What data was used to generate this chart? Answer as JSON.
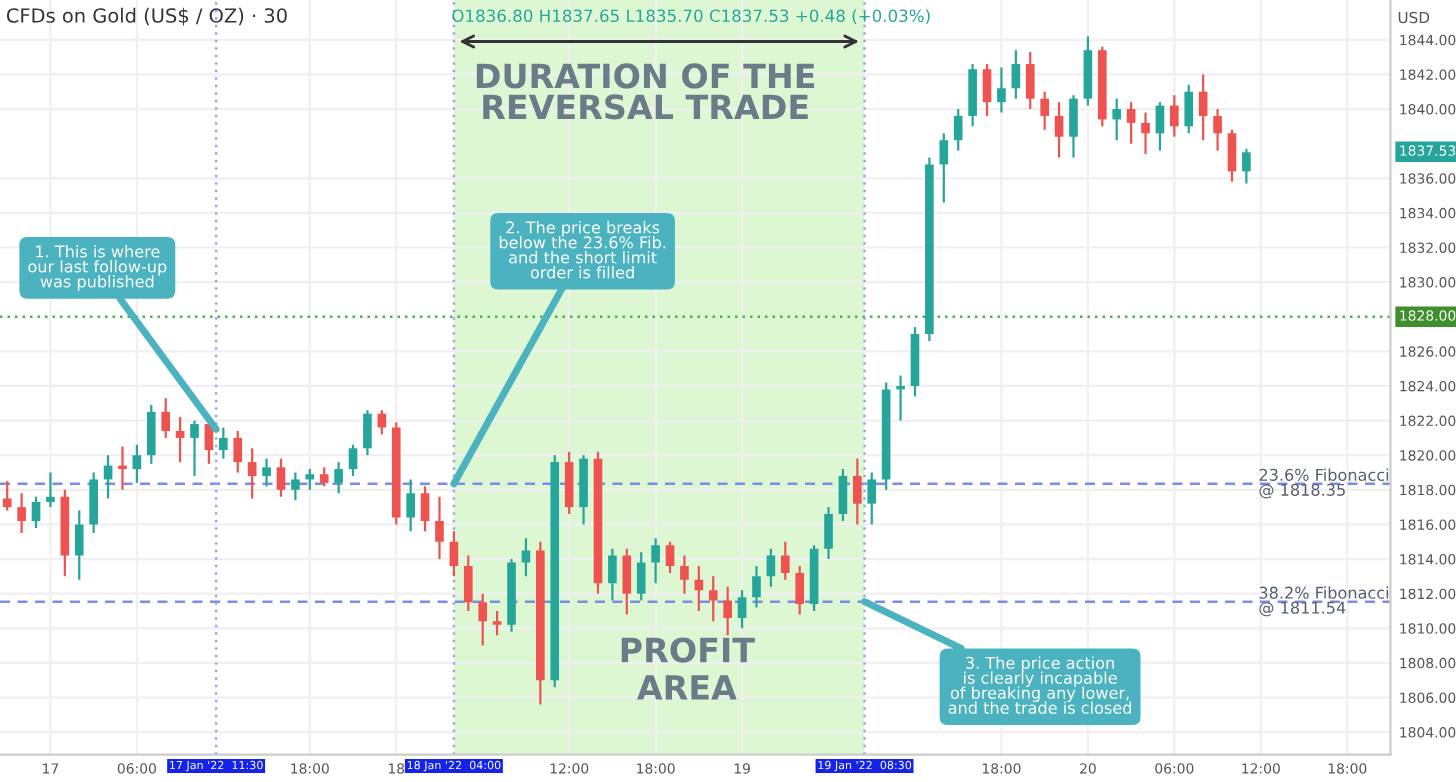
{
  "chart_data": {
    "type": "candlestick",
    "title": "CFDs on Gold (US$ / OZ) · 30",
    "subtitle": "O1836.80 H1837.65 L1835.70 C1837.53 +0.48 (+0.03%)",
    "ylabel": "USD",
    "x": [
      "2022-01-16T21:00",
      "2022-01-16T22:00",
      "2022-01-16T23:00",
      "2022-01-17T00:00",
      "2022-01-17T01:00",
      "2022-01-17T02:00",
      "2022-01-17T03:00",
      "2022-01-17T04:00",
      "2022-01-17T05:00",
      "2022-01-17T06:00",
      "2022-01-17T07:00",
      "2022-01-17T08:00",
      "2022-01-17T09:00",
      "2022-01-17T10:00",
      "2022-01-17T11:00",
      "2022-01-17T12:00",
      "2022-01-17T13:00",
      "2022-01-17T14:00",
      "2022-01-17T15:00",
      "2022-01-17T16:00",
      "2022-01-17T17:00",
      "2022-01-17T18:00",
      "2022-01-17T19:00",
      "2022-01-17T20:00",
      "2022-01-17T21:00",
      "2022-01-17T22:00",
      "2022-01-17T23:00",
      "2022-01-18T00:00",
      "2022-01-18T01:00",
      "2022-01-18T02:00",
      "2022-01-18T03:00",
      "2022-01-18T04:00",
      "2022-01-18T05:00",
      "2022-01-18T06:00",
      "2022-01-18T07:00",
      "2022-01-18T08:00",
      "2022-01-18T09:00",
      "2022-01-18T10:00",
      "2022-01-18T11:00",
      "2022-01-18T12:00",
      "2022-01-18T13:00",
      "2022-01-18T14:00",
      "2022-01-18T15:00",
      "2022-01-18T16:00",
      "2022-01-18T17:00",
      "2022-01-18T18:00",
      "2022-01-18T19:00",
      "2022-01-18T20:00",
      "2022-01-18T21:00",
      "2022-01-18T22:00",
      "2022-01-18T23:00",
      "2022-01-19T00:00",
      "2022-01-19T01:00",
      "2022-01-19T02:00",
      "2022-01-19T03:00",
      "2022-01-19T04:00",
      "2022-01-19T05:00",
      "2022-01-19T06:00",
      "2022-01-19T07:00",
      "2022-01-19T08:00",
      "2022-01-19T09:00",
      "2022-01-19T10:00",
      "2022-01-19T11:00",
      "2022-01-19T12:00",
      "2022-01-19T13:00",
      "2022-01-19T14:00",
      "2022-01-19T15:00",
      "2022-01-19T16:00",
      "2022-01-19T17:00",
      "2022-01-19T18:00",
      "2022-01-19T19:00",
      "2022-01-19T20:00",
      "2022-01-19T21:00",
      "2022-01-19T22:00",
      "2022-01-19T23:00",
      "2022-01-20T00:00",
      "2022-01-20T01:00",
      "2022-01-20T02:00",
      "2022-01-20T03:00",
      "2022-01-20T04:00",
      "2022-01-20T05:00",
      "2022-01-20T06:00",
      "2022-01-20T07:00",
      "2022-01-20T08:00",
      "2022-01-20T09:00",
      "2022-01-20T10:00",
      "2022-01-20T11:00"
    ],
    "ohlc": [
      [
        1817.5,
        1818.5,
        1816.8,
        1817.0
      ],
      [
        1817.0,
        1817.8,
        1815.5,
        1816.2
      ],
      [
        1816.2,
        1817.6,
        1815.8,
        1817.3
      ],
      [
        1817.3,
        1819.0,
        1817.0,
        1817.6
      ],
      [
        1817.6,
        1818.0,
        1813.0,
        1814.2
      ],
      [
        1814.2,
        1816.8,
        1812.8,
        1816.0
      ],
      [
        1816.0,
        1819.0,
        1815.5,
        1818.6
      ],
      [
        1818.6,
        1820.0,
        1817.5,
        1819.4
      ],
      [
        1819.4,
        1820.5,
        1818.0,
        1819.2
      ],
      [
        1819.2,
        1820.6,
        1818.4,
        1820.0
      ],
      [
        1820.0,
        1822.9,
        1819.5,
        1822.5
      ],
      [
        1822.5,
        1823.3,
        1821.0,
        1821.4
      ],
      [
        1821.4,
        1822.2,
        1819.6,
        1821.0
      ],
      [
        1821.0,
        1822.0,
        1818.8,
        1821.8
      ],
      [
        1821.8,
        1822.0,
        1819.5,
        1820.3
      ],
      [
        1820.3,
        1821.6,
        1819.8,
        1821.0
      ],
      [
        1821.0,
        1821.4,
        1819.0,
        1819.6
      ],
      [
        1819.6,
        1820.4,
        1817.5,
        1818.8
      ],
      [
        1818.8,
        1819.8,
        1818.2,
        1819.3
      ],
      [
        1819.3,
        1819.8,
        1817.6,
        1818.0
      ],
      [
        1818.0,
        1819.0,
        1817.4,
        1818.6
      ],
      [
        1818.6,
        1819.2,
        1818.0,
        1818.9
      ],
      [
        1818.9,
        1819.3,
        1818.2,
        1818.4
      ],
      [
        1818.4,
        1819.6,
        1817.8,
        1819.2
      ],
      [
        1819.2,
        1820.6,
        1818.8,
        1820.4
      ],
      [
        1820.4,
        1822.6,
        1820.0,
        1822.4
      ],
      [
        1822.4,
        1822.6,
        1821.2,
        1821.6
      ],
      [
        1821.6,
        1821.9,
        1816.0,
        1816.4
      ],
      [
        1816.4,
        1818.6,
        1815.6,
        1817.8
      ],
      [
        1817.8,
        1818.2,
        1815.6,
        1816.2
      ],
      [
        1816.2,
        1817.6,
        1814.0,
        1815.0
      ],
      [
        1815.0,
        1815.6,
        1813.0,
        1813.6
      ],
      [
        1813.6,
        1814.2,
        1811.0,
        1811.5
      ],
      [
        1811.5,
        1812.0,
        1809.0,
        1810.4
      ],
      [
        1810.4,
        1811.0,
        1809.6,
        1810.2
      ],
      [
        1810.2,
        1814.0,
        1809.8,
        1813.8
      ],
      [
        1813.8,
        1815.2,
        1813.0,
        1814.5
      ],
      [
        1814.5,
        1815.0,
        1805.6,
        1807.0
      ],
      [
        1807.0,
        1820.0,
        1806.6,
        1819.6
      ],
      [
        1819.6,
        1820.2,
        1816.6,
        1817.0
      ],
      [
        1817.0,
        1820.0,
        1816.0,
        1819.8
      ],
      [
        1819.8,
        1820.2,
        1812.0,
        1812.6
      ],
      [
        1812.6,
        1814.6,
        1811.6,
        1814.2
      ],
      [
        1814.2,
        1814.6,
        1810.8,
        1812.0
      ],
      [
        1812.0,
        1814.4,
        1811.6,
        1813.8
      ],
      [
        1813.8,
        1815.2,
        1812.6,
        1814.8
      ],
      [
        1814.8,
        1815.0,
        1813.2,
        1813.6
      ],
      [
        1813.6,
        1814.2,
        1812.0,
        1812.8
      ],
      [
        1812.8,
        1813.6,
        1811.0,
        1812.2
      ],
      [
        1812.2,
        1813.0,
        1810.4,
        1811.6
      ],
      [
        1811.6,
        1812.4,
        1809.6,
        1810.6
      ],
      [
        1810.6,
        1812.2,
        1810.0,
        1811.8
      ],
      [
        1811.8,
        1813.6,
        1811.2,
        1813.0
      ],
      [
        1813.0,
        1814.6,
        1812.4,
        1814.2
      ],
      [
        1814.2,
        1815.0,
        1812.8,
        1813.2
      ],
      [
        1813.2,
        1813.6,
        1810.8,
        1811.4
      ],
      [
        1811.4,
        1814.8,
        1811.0,
        1814.6
      ],
      [
        1814.6,
        1817.0,
        1814.0,
        1816.6
      ],
      [
        1816.6,
        1819.2,
        1816.2,
        1818.8
      ],
      [
        1818.8,
        1819.8,
        1816.0,
        1817.2
      ],
      [
        1817.2,
        1819.0,
        1816.0,
        1818.6
      ],
      [
        1818.6,
        1824.2,
        1818.0,
        1823.8
      ],
      [
        1823.8,
        1824.6,
        1822.0,
        1824.0
      ],
      [
        1824.0,
        1827.4,
        1823.4,
        1827.0
      ],
      [
        1827.0,
        1837.2,
        1826.6,
        1836.8
      ],
      [
        1836.8,
        1838.6,
        1834.6,
        1838.2
      ],
      [
        1838.2,
        1840.0,
        1837.6,
        1839.6
      ],
      [
        1839.6,
        1842.6,
        1839.0,
        1842.3
      ],
      [
        1842.3,
        1842.6,
        1839.6,
        1840.4
      ],
      [
        1840.4,
        1842.4,
        1839.8,
        1841.2
      ],
      [
        1841.2,
        1843.4,
        1840.6,
        1842.6
      ],
      [
        1842.6,
        1843.3,
        1840.0,
        1840.6
      ],
      [
        1840.6,
        1841.0,
        1838.8,
        1839.6
      ],
      [
        1839.6,
        1840.4,
        1837.2,
        1838.4
      ],
      [
        1838.4,
        1840.8,
        1837.2,
        1840.6
      ],
      [
        1840.6,
        1844.2,
        1840.2,
        1843.4
      ],
      [
        1843.4,
        1843.6,
        1839.0,
        1839.4
      ],
      [
        1839.4,
        1840.6,
        1838.2,
        1840.0
      ],
      [
        1840.0,
        1840.4,
        1838.0,
        1839.2
      ],
      [
        1839.2,
        1839.8,
        1837.4,
        1838.6
      ],
      [
        1838.6,
        1840.4,
        1837.6,
        1840.2
      ],
      [
        1840.2,
        1840.8,
        1838.4,
        1839.0
      ],
      [
        1839.0,
        1841.4,
        1838.6,
        1841.0
      ],
      [
        1841.0,
        1842.0,
        1838.2,
        1839.6
      ],
      [
        1839.6,
        1840.0,
        1837.6,
        1838.6
      ],
      [
        1838.6,
        1838.8,
        1835.8,
        1836.4
      ],
      [
        1836.4,
        1837.7,
        1835.7,
        1837.5
      ]
    ],
    "colors": [
      "#ef5350",
      "#ef5350",
      "#26a69a",
      "#26a69a",
      "#ef5350",
      "#26a69a",
      "#26a69a",
      "#26a69a",
      "#ef5350",
      "#26a69a",
      "#26a69a",
      "#ef5350",
      "#ef5350",
      "#26a69a",
      "#ef5350",
      "#26a69a",
      "#ef5350",
      "#ef5350",
      "#26a69a",
      "#ef5350",
      "#26a69a",
      "#26a69a",
      "#ef5350",
      "#26a69a",
      "#26a69a",
      "#26a69a",
      "#ef5350",
      "#ef5350",
      "#26a69a",
      "#ef5350",
      "#ef5350",
      "#ef5350",
      "#ef5350",
      "#ef5350",
      "#ef5350",
      "#26a69a",
      "#26a69a",
      "#ef5350",
      "#26a69a",
      "#ef5350",
      "#26a69a",
      "#ef5350",
      "#26a69a",
      "#ef5350",
      "#26a69a",
      "#26a69a",
      "#ef5350",
      "#ef5350",
      "#ef5350",
      "#ef5350",
      "#ef5350",
      "#26a69a",
      "#26a69a",
      "#26a69a",
      "#ef5350",
      "#ef5350",
      "#26a69a",
      "#26a69a",
      "#26a69a",
      "#ef5350",
      "#26a69a",
      "#26a69a",
      "#26a69a",
      "#26a69a",
      "#26a69a",
      "#26a69a",
      "#26a69a",
      "#26a69a",
      "#ef5350",
      "#26a69a",
      "#26a69a",
      "#ef5350",
      "#ef5350",
      "#ef5350",
      "#26a69a",
      "#26a69a",
      "#ef5350",
      "#26a69a",
      "#ef5350",
      "#ef5350",
      "#26a69a",
      "#ef5350",
      "#26a69a",
      "#ef5350",
      "#ef5350",
      "#ef5350",
      "#26a69a"
    ],
    "xlim": [
      "2022-01-16T20:30",
      "2022-01-20T21:00"
    ],
    "xticks": [
      {
        "value": "2022-01-17",
        "label": "17"
      },
      {
        "value": "2022-01-17T06:00",
        "label": "06:00"
      },
      {
        "value": "2022-01-17T18:00",
        "label": "18:00"
      },
      {
        "value": "2022-01-18",
        "label": "18"
      },
      {
        "value": "2022-01-18T12:00",
        "label": "12:00"
      },
      {
        "value": "2022-01-18T18:00",
        "label": "18:00"
      },
      {
        "value": "2022-01-19",
        "label": "19"
      },
      {
        "value": "2022-01-19T18:00",
        "label": "18:00"
      },
      {
        "value": "2022-01-20",
        "label": "20"
      },
      {
        "value": "2022-01-20T06:00",
        "label": "06:00"
      },
      {
        "value": "2022-01-20T12:00",
        "label": "12:00"
      },
      {
        "value": "2022-01-20T18:00",
        "label": "18:00"
      }
    ],
    "ylim": [
      1802.7,
      1846.3
    ],
    "yticks": [
      {
        "value": 1804,
        "label": "1804.00"
      },
      {
        "value": 1806,
        "label": "1806.00"
      },
      {
        "value": 1808,
        "label": "1808.00"
      },
      {
        "value": 1810,
        "label": "1810.00"
      },
      {
        "value": 1812,
        "label": "1812.00"
      },
      {
        "value": 1814,
        "label": "1814.00"
      },
      {
        "value": 1816,
        "label": "1816.00"
      },
      {
        "value": 1818,
        "label": "1818.00"
      },
      {
        "value": 1820,
        "label": "1820.00"
      },
      {
        "value": 1822,
        "label": "1822.00"
      },
      {
        "value": 1824,
        "label": "1824.00"
      },
      {
        "value": 1826,
        "label": "1826.00"
      },
      {
        "value": 1830,
        "label": "1830.00"
      },
      {
        "value": 1832,
        "label": "1832.00"
      },
      {
        "value": 1834,
        "label": "1834.00"
      },
      {
        "value": 1836,
        "label": "1836.00"
      },
      {
        "value": 1840,
        "label": "1840.00"
      },
      {
        "value": 1842,
        "label": "1842.00"
      },
      {
        "value": 1844,
        "label": "1844.00"
      }
    ],
    "grid": true,
    "ref_lines": [
      {
        "axis": "y",
        "value": 1818.35,
        "label": "23.6% Fibonacci\n@ 1818.35",
        "color": "#7b8ee6",
        "line_style": "dashed"
      },
      {
        "axis": "y",
        "value": 1811.54,
        "label": "38.2% Fibonacci\n@ 1811.54",
        "color": "#7b8ee6",
        "line_style": "dashed"
      },
      {
        "axis": "y",
        "value": 1828,
        "label": "1828.00",
        "color": "#4caf50",
        "line_style": "dotted"
      },
      {
        "axis": "x",
        "value": "2022-01-17T11:30",
        "label": "17 Jan '22  11:30",
        "color": "#9da3f2",
        "line_style": "dotted"
      },
      {
        "axis": "x",
        "value": "2022-01-18T04:00",
        "label": "18 Jan '22  04:00",
        "color": "#9da3f2",
        "line_style": "dotted"
      },
      {
        "axis": "x",
        "value": "2022-01-19T08:30",
        "label": "19 Jan '22  08:30",
        "color": "#9da3f2",
        "line_style": "dotted"
      }
    ],
    "bands": [
      {
        "axis": "x",
        "from": "2022-01-18T04:00",
        "to": "2022-01-19T08:30",
        "label": "PROFIT\nAREA",
        "color": "#dcf7d2"
      }
    ],
    "annotations": [
      {
        "text": "1. This is where\nour last follow-up\nwas published",
        "x": "2022-01-17T11:30",
        "y": 1821.5
      },
      {
        "text": "2. The price breaks\nbelow the 23.6% Fib.\nand the short limit\norder is filled",
        "x": "2022-01-18T04:00",
        "y": 1818.35
      },
      {
        "text": "3. The price action\nis clearly incapable\nof breaking any lower,\nand the trade is closed",
        "x": "2022-01-19T08:30",
        "y": 1811.54
      },
      "DURATION OF THE\nREVERSAL TRADE",
      {
        "text": "1837.53",
        "y": 1837.53
      }
    ]
  }
}
